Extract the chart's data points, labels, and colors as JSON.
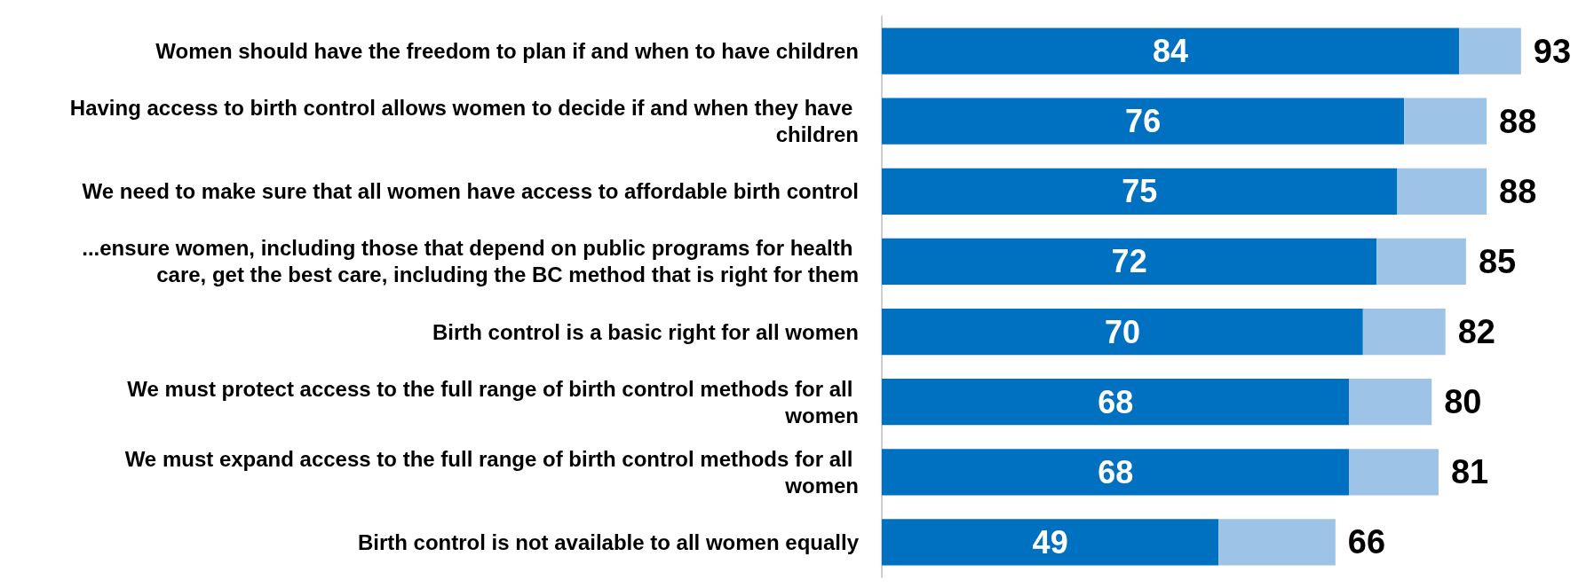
{
  "chart_data": {
    "type": "bar",
    "orientation": "horizontal",
    "stacked": true,
    "tick_labels": "y",
    "categories": [
      "Women should have the freedom to plan if and when to have children",
      "Having access to birth control allows women to decide if and when they have children",
      "We need to make sure that all women have access to affordable birth control",
      "...ensure women, including those that depend on public programs for health care, get the best care, including the BC method that is right for them",
      "Birth control is a basic right for all women",
      "We must protect access to the full range of birth control methods for all women",
      "We must expand access to the full range of birth control methods for all women",
      "Birth control is not available to all women equally"
    ],
    "series": [
      {
        "color": "#0070c0",
        "values": [
          84,
          76,
          75,
          72,
          70,
          68,
          68,
          49
        ],
        "value_labels": [
          "84",
          "76",
          "75",
          "72",
          "70",
          "68",
          "68",
          "49"
        ]
      },
      {
        "color": "#9dc3e6",
        "values": [
          9,
          12,
          13,
          13,
          12,
          12,
          13,
          17
        ]
      }
    ],
    "totals": [
      "93",
      "88",
      "88",
      "85",
      "82",
      "80",
      "81",
      "66"
    ]
  }
}
